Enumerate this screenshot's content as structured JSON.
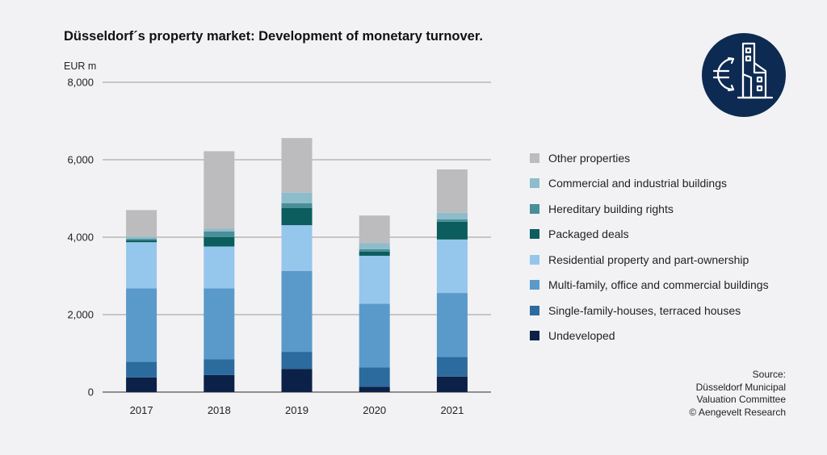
{
  "chart_data": {
    "type": "bar",
    "stacked": true,
    "title": "Düsseldorf´s property market: Development of monetary turnover.",
    "ylabel": "EUR m",
    "ylim": [
      0,
      8000
    ],
    "yticks": [
      "0",
      "2,000",
      "4,000",
      "6,000",
      "8,000"
    ],
    "grid": true,
    "legend_position": "right",
    "categories": [
      "2017",
      "2018",
      "2019",
      "2020",
      "2021"
    ],
    "series": [
      {
        "name": "Undeveloped",
        "color": "#0b2148",
        "values": [
          380,
          440,
          600,
          140,
          400
        ]
      },
      {
        "name": "Single-family-houses, terraced houses",
        "color": "#2c6b9e",
        "values": [
          400,
          410,
          440,
          500,
          510
        ]
      },
      {
        "name": "Multi-family, office and commercial buildings",
        "color": "#5a9aca",
        "values": [
          1900,
          1830,
          2090,
          1640,
          1650
        ]
      },
      {
        "name": "Residential property and part-ownership",
        "color": "#95c6ec",
        "values": [
          1190,
          1080,
          1180,
          1240,
          1380
        ]
      },
      {
        "name": "Packaged deals",
        "color": "#0b5d5e",
        "values": [
          50,
          240,
          440,
          110,
          460
        ]
      },
      {
        "name": "Hereditary building rights",
        "color": "#4a8f98",
        "values": [
          40,
          150,
          130,
          60,
          60
        ]
      },
      {
        "name": "Commercial and industrial buildings",
        "color": "#8dbccb",
        "values": [
          50,
          70,
          270,
          160,
          170
        ]
      },
      {
        "name": "Other properties",
        "color": "#bcbcbe",
        "values": [
          690,
          2000,
          1410,
          710,
          1120
        ]
      }
    ]
  },
  "source": {
    "line1": "Source:",
    "line2": "Düsseldorf Municipal",
    "line3": "Valuation Committee",
    "line4": "© Aengevelt Research"
  },
  "logo": {
    "icon": "euro-building-icon",
    "bg_color": "#0d2a52"
  }
}
